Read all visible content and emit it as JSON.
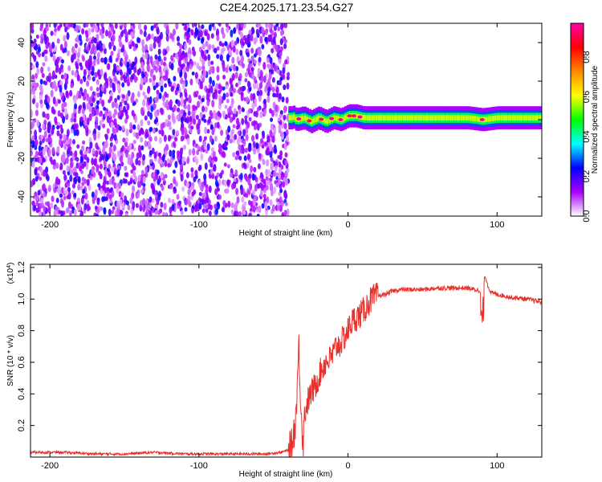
{
  "figure_title": "C2E4.2025.171.23.54.G27",
  "chart_data": [
    {
      "type": "heatmap",
      "xlabel": "Height of straight line (km)",
      "ylabel": "Frequency (Hz)",
      "xlim": [
        -213,
        130
      ],
      "ylim": [
        -50,
        50
      ],
      "x_ticks": [
        -200,
        -100,
        0,
        100
      ],
      "x_tick_labels": [
        "-200",
        "-100",
        "0",
        "100"
      ],
      "y_ticks": [
        -40,
        -20,
        0,
        20,
        40
      ],
      "y_tick_labels": [
        "-40",
        "-20",
        "0",
        "20",
        "40"
      ],
      "colorbar": {
        "label": "Normalized spectral amplitude",
        "range": [
          0,
          0.97
        ],
        "ticks": [
          0,
          0.2,
          0.4,
          0.6,
          0.8
        ],
        "tick_labels": [
          "0.0",
          "0.2",
          "0.4",
          "0.6",
          "0.8"
        ],
        "colormap": [
          "#ffffff",
          "#aa00ff",
          "#0000ff",
          "#00ffff",
          "#00ff00",
          "#ffff00",
          "#ff8800",
          "#ff0000",
          "#ff00aa"
        ]
      },
      "regions": [
        {
          "x_range": [
            -213,
            -40
          ],
          "description_values": {
            "amplitude_min": 0.0,
            "amplitude_max": 0.25,
            "freq_range": [
              -50,
              50
            ]
          }
        },
        {
          "x_range": [
            -40,
            130
          ],
          "band_center_hz": 0,
          "band_halfwidth_hz": 4,
          "peak_amplitude": 0.95
        }
      ],
      "band_center_line": [
        [
          -38,
          2
        ],
        [
          -35,
          0
        ],
        [
          -30,
          1
        ],
        [
          -25,
          -1
        ],
        [
          -20,
          1
        ],
        [
          -15,
          -1
        ],
        [
          -10,
          1
        ],
        [
          -5,
          0
        ],
        [
          0,
          2
        ],
        [
          5,
          2
        ],
        [
          10,
          1
        ],
        [
          20,
          1
        ],
        [
          40,
          1
        ],
        [
          60,
          1
        ],
        [
          80,
          1
        ],
        [
          90,
          0
        ],
        [
          100,
          1
        ],
        [
          130,
          1
        ]
      ]
    },
    {
      "type": "line",
      "xlabel": "Height of straight line (km)",
      "ylabel": "SNR (10 * v/v)",
      "y_multiplier_label": "(x10",
      "y_multiplier_exp": "4",
      "y_multiplier_close": ")",
      "xlim": [
        -213,
        130
      ],
      "ylim": [
        0,
        1.22
      ],
      "x_ticks": [
        -200,
        -100,
        0,
        100
      ],
      "x_tick_labels": [
        "-200",
        "-100",
        "0",
        "100"
      ],
      "y_ticks": [
        0.2,
        0.4,
        0.6,
        0.8,
        1.0,
        1.2
      ],
      "y_tick_labels": [
        "0.2",
        "0.4",
        "0.6",
        "0.8",
        "1.0",
        "1.2"
      ],
      "series": [
        {
          "color": "#e8302a",
          "x": [
            -213,
            -190,
            -170,
            -150,
            -130,
            -110,
            -90,
            -70,
            -55,
            -45,
            -38,
            -35,
            -33,
            -31,
            -30,
            -29,
            -27,
            -25,
            -22,
            -20,
            -18,
            -15,
            -12,
            -10,
            -8,
            -5,
            -3,
            0,
            2,
            5,
            8,
            10,
            12,
            14,
            16,
            20,
            25,
            30,
            35,
            40,
            50,
            60,
            70,
            80,
            85,
            90,
            92,
            94,
            96,
            100,
            110,
            120,
            130
          ],
          "y": [
            0.03,
            0.03,
            0.02,
            0.02,
            0.03,
            0.02,
            0.02,
            0.02,
            0.02,
            0.03,
            0.05,
            0.25,
            0.7,
            0.2,
            0.1,
            0.3,
            0.35,
            0.4,
            0.45,
            0.5,
            0.55,
            0.6,
            0.62,
            0.65,
            0.7,
            0.72,
            0.75,
            0.8,
            0.85,
            0.88,
            0.9,
            0.92,
            0.95,
            0.98,
            1.0,
            1.02,
            1.03,
            1.05,
            1.06,
            1.06,
            1.06,
            1.07,
            1.07,
            1.07,
            1.06,
            1.05,
            1.15,
            1.08,
            1.04,
            1.03,
            1.01,
            1.0,
            0.98
          ]
        }
      ]
    }
  ]
}
